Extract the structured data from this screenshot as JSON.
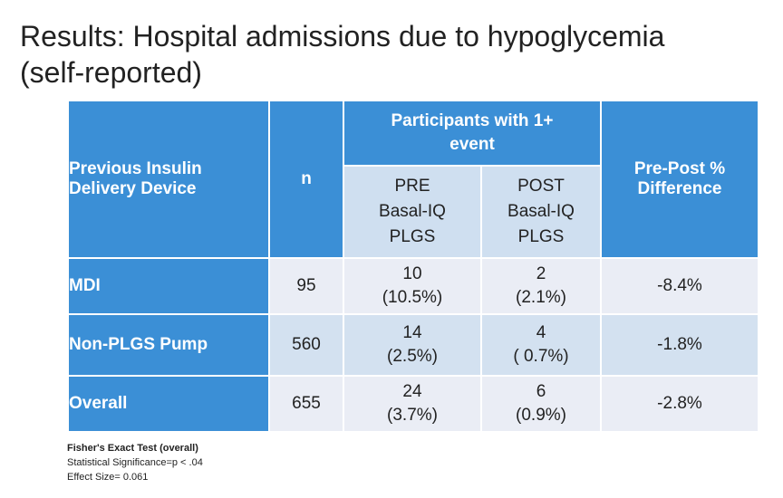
{
  "title": {
    "line1": "Results: Hospital admissions due to hypoglycemia",
    "line2": "(self-reported)"
  },
  "table": {
    "header": {
      "device": [
        "Previous Insulin",
        "Delivery Device"
      ],
      "n": "n",
      "group": [
        "Participants with 1+",
        "event"
      ],
      "pre": [
        "PRE",
        "Basal-IQ",
        "PLGS"
      ],
      "post": [
        "POST",
        "Basal-IQ",
        "PLGS"
      ],
      "diff": [
        "Pre-Post %",
        "Difference"
      ]
    },
    "rows": [
      {
        "device": "MDI",
        "n": "95",
        "pre_count": "10",
        "pre_pct": "(10.5%)",
        "post_count": "2",
        "post_pct": "(2.1%)",
        "diff": "-8.4%"
      },
      {
        "device": "Non-PLGS Pump",
        "n": "560",
        "pre_count": "14",
        "pre_pct": "(2.5%)",
        "post_count": "4",
        "post_pct": "( 0.7%)",
        "diff": "-1.8%"
      },
      {
        "device": "Overall",
        "n": "655",
        "pre_count": "24",
        "pre_pct": "(3.7%)",
        "post_count": "6",
        "post_pct": "(0.9%)",
        "diff": "-2.8%"
      }
    ]
  },
  "footnote": {
    "title": "Fisher's Exact Test (overall)",
    "line1": "Statistical Significance=p < .04",
    "line2": "Effect Size= 0.061"
  },
  "colors": {
    "header_blue": "#3b8fd6",
    "subheader": "#cfdff0",
    "row_light": "#eaedf5",
    "row_mid": "#d3e1f0"
  }
}
